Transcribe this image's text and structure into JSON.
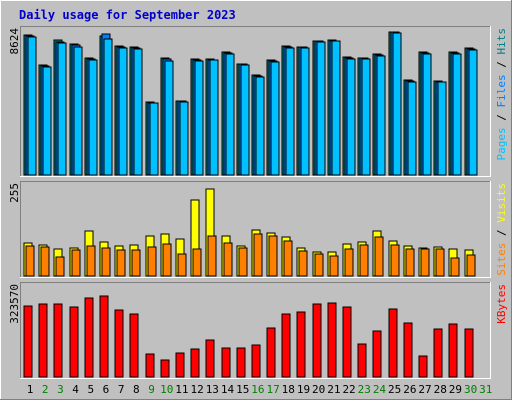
{
  "chart_data": {
    "type": "bar",
    "title": "Daily usage for September 2023",
    "days": [
      "1",
      "2",
      "3",
      "4",
      "5",
      "6",
      "7",
      "8",
      "9",
      "10",
      "11",
      "12",
      "13",
      "14",
      "15",
      "16",
      "17",
      "18",
      "19",
      "20",
      "21",
      "22",
      "23",
      "24",
      "25",
      "26",
      "27",
      "28",
      "29",
      "30",
      "31"
    ],
    "weekend_days": [
      "2",
      "3",
      "9",
      "10",
      "16",
      "17",
      "23",
      "24",
      "30",
      "31"
    ],
    "colors": {
      "background": "#c0c0c0",
      "frame": "#e8e8e8",
      "title": "#0000cc",
      "day_weekday": "#000000",
      "day_weekend": "#008000",
      "pages": "#00c0ff",
      "files": "#0080ff",
      "hits": "#008080",
      "visits": "#ffff00",
      "sites": "#ff8000",
      "kbytes": "#ff0000"
    },
    "panels": [
      {
        "id": "hits",
        "ymax_label": "8624",
        "ymax": 8624,
        "legend": [
          {
            "name": "Pages",
            "color": "#00c0ff"
          },
          {
            "name": "Files",
            "color": "#0080ff"
          },
          {
            "name": "Hits",
            "color": "#008080"
          }
        ],
        "series": [
          {
            "name": "Hits",
            "color": "#008080",
            "values": [
              8450,
              6620,
              8150,
              7900,
              7040,
              8380,
              7760,
              7710,
              4400,
              7080,
              4490,
              6970,
              7000,
              7410,
              6720,
              6050,
              6920,
              7780,
              7740,
              8080,
              8130,
              7100,
              7070,
              7300,
              8640,
              5720,
              7420,
              5680,
              7430,
              7630
            ]
          },
          {
            "name": "Files",
            "color": "#0080ff",
            "values": [
              8400,
              6560,
              8050,
              7810,
              6990,
              8500,
              7710,
              7640,
              4370,
              6980,
              4440,
              6930,
              6960,
              7370,
              6680,
              5970,
              6880,
              7730,
              7700,
              8060,
              8110,
              7050,
              7030,
              7260,
              8600,
              5670,
              7350,
              5630,
              7380,
              7600
            ]
          },
          {
            "name": "Pages",
            "color": "#00c0ff",
            "values": [
              8350,
              6500,
              7980,
              7720,
              6950,
              8180,
              7650,
              7580,
              4320,
              6900,
              4390,
              6880,
              6920,
              7300,
              6620,
              5890,
              6830,
              7680,
              7650,
              8020,
              8080,
              6990,
              6980,
              7190,
              8580,
              5610,
              7280,
              5580,
              7320,
              7560
            ]
          }
        ]
      },
      {
        "id": "visits",
        "ymax_label": "255",
        "ymax": 255,
        "legend": [
          {
            "name": "Sites",
            "color": "#ff8000"
          },
          {
            "name": "Visits",
            "color": "#ffff00"
          }
        ],
        "series": [
          {
            "name": "Visits",
            "color": "#ffff00",
            "values": [
              95,
              88,
              77,
              81,
              128,
              97,
              87,
              89,
              115,
              119,
              107,
              217,
              250,
              114,
              87,
              131,
              123,
              113,
              80,
              69,
              69,
              92,
              97,
              129,
              101,
              86,
              81,
              82,
              78,
              75
            ]
          },
          {
            "name": "Sites",
            "color": "#ff8000",
            "values": [
              87,
              83,
              54,
              75,
              86,
              79,
              75,
              74,
              84,
              91,
              63,
              78,
              115,
              95,
              79,
              120,
              114,
              99,
              71,
              64,
              58,
              78,
              90,
              111,
              88,
              78,
              77,
              76,
              52,
              60
            ]
          }
        ]
      },
      {
        "id": "kbytes",
        "ymax_label": "323570",
        "ymax": 323570,
        "legend": [
          {
            "name": "KBytes",
            "color": "#ff0000"
          }
        ],
        "series": [
          {
            "name": "KBytes",
            "color": "#ff0000",
            "values": [
              259000,
              265000,
              267000,
              255000,
              288000,
              295000,
              242000,
              230000,
              82000,
              62000,
              86000,
              102000,
              136000,
              107000,
              107000,
              115000,
              179000,
              230000,
              237000,
              265000,
              270000,
              253000,
              119000,
              168000,
              246000,
              197000,
              78000,
              173000,
              193000,
              174000
            ]
          }
        ]
      }
    ]
  }
}
